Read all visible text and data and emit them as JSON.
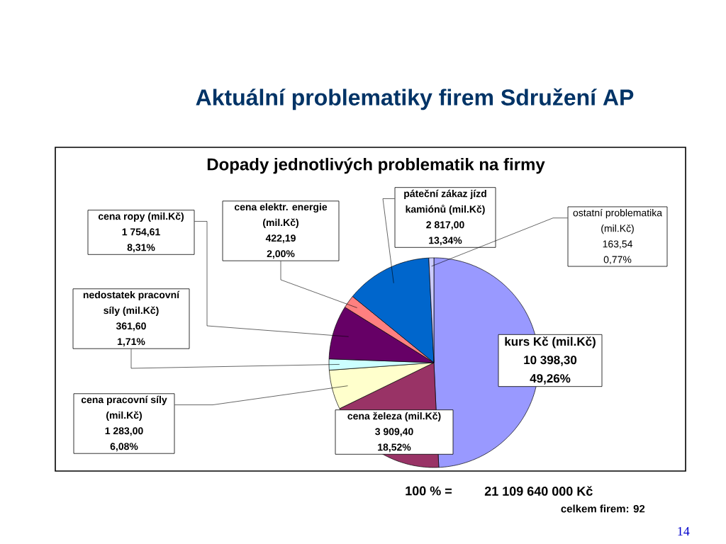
{
  "chart_data": {
    "type": "pie",
    "title": "Aktuální problematiky firem Sdružení AP",
    "subtitle": "Dopady jednotlivých problematik na firmy",
    "categories": [
      "kurs Kč (mil.Kč)",
      "cena železa (mil.Kč)",
      "cena pracovní síly (mil.Kč)",
      "nedostatek pracovní síly (mil.Kč)",
      "cena ropy (mil.Kč)",
      "cena elektr. energie (mil.Kč)",
      "páteční zákaz jízd kamiónů (mil.Kč)",
      "ostatní problematika (mil.Kč)"
    ],
    "values": [
      10398.3,
      3909.4,
      1283.0,
      361.6,
      1754.61,
      422.19,
      2817.0,
      163.54
    ],
    "value_labels": [
      "10 398,30\n49,26%",
      "3 909,40\n18,52%",
      "1 283,00\n6,08%",
      "361,60\n1,71%",
      "1 754,61\n8,31%",
      "422,19\n2,00%",
      "2 817,00\n13,34%",
      "163,54\n0,77%"
    ],
    "colors": [
      "#9999ff",
      "#993366",
      "#ffffcc",
      "#ccffff",
      "#660066",
      "#ff8080",
      "#0066cc",
      "#ccccff"
    ],
    "annotations": [
      "100 % =",
      "21 109 640 000 Kč",
      "celkem firem: 92",
      "14"
    ]
  }
}
